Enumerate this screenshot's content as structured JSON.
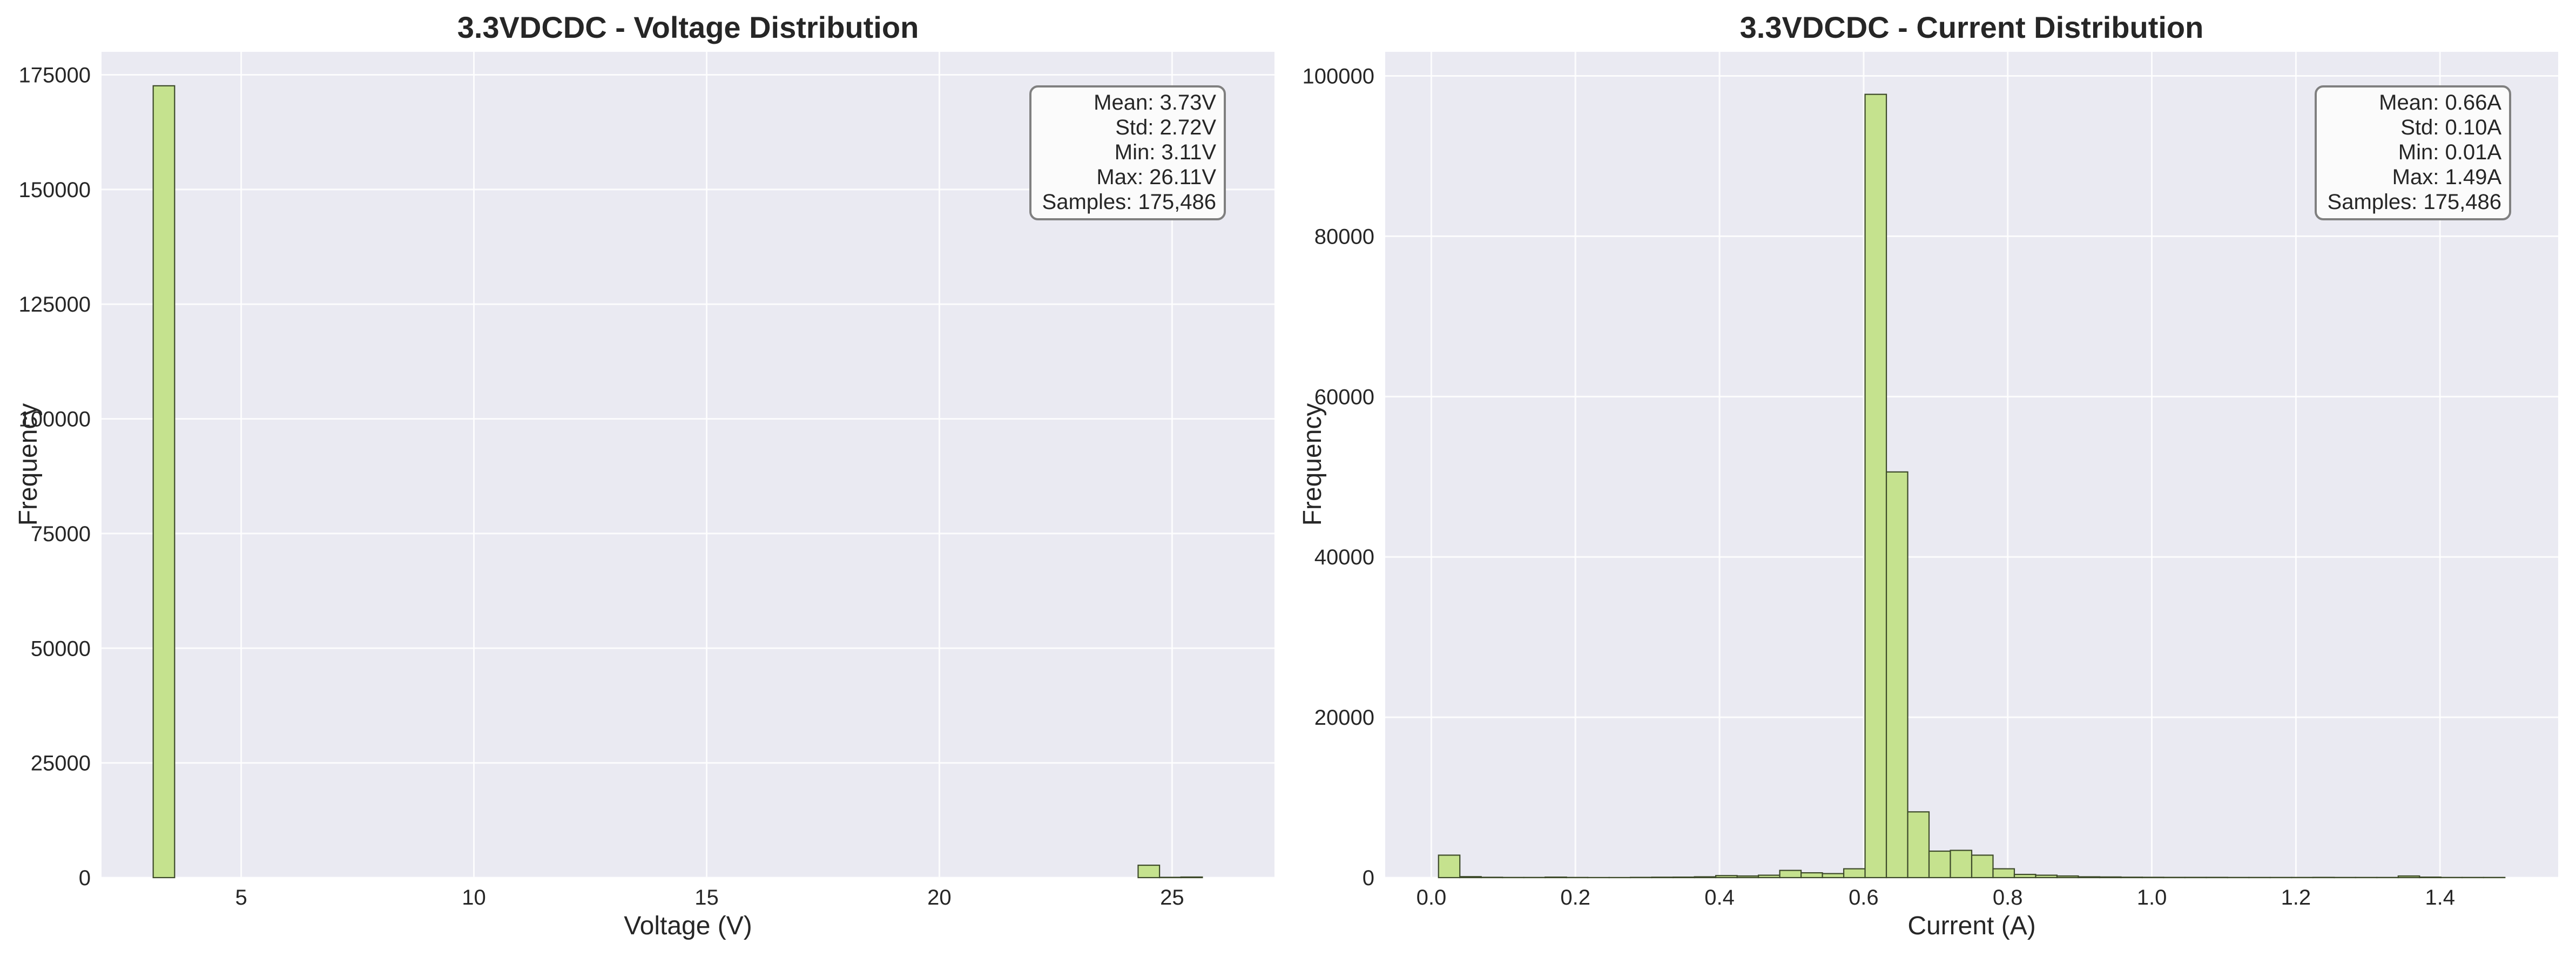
{
  "chart_data": [
    {
      "type": "bar",
      "title": "3.3VDCDC - Voltage Distribution",
      "xlabel": "Voltage (V)",
      "ylabel": "Frequency",
      "xlim": [
        2.0,
        27.2
      ],
      "ylim": [
        0,
        180000
      ],
      "xticks": [
        5,
        10,
        15,
        20,
        25
      ],
      "yticks": [
        0,
        25000,
        50000,
        75000,
        100000,
        125000,
        150000,
        175000
      ],
      "grid": true,
      "colors": {
        "bar": "#c5e28e",
        "edge": "#3d4a2a",
        "plot_bg": "#eaeaf2"
      },
      "bins": [
        {
          "x0": 3.11,
          "x1": 3.57,
          "count": 172600
        },
        {
          "x0": 24.27,
          "x1": 24.73,
          "count": 2700
        },
        {
          "x0": 24.73,
          "x1": 25.19,
          "count": 60
        },
        {
          "x0": 25.19,
          "x1": 25.65,
          "count": 126
        }
      ],
      "stats": [
        "Mean: 3.73V",
        "Std: 2.72V",
        "Min: 3.11V",
        "Max: 26.11V",
        "Samples: 175,486"
      ]
    },
    {
      "type": "bar",
      "title": "3.3VDCDC - Current Distribution",
      "xlabel": "Current (A)",
      "ylabel": "Frequency",
      "xlim": [
        -0.064,
        1.564
      ],
      "ylim": [
        0,
        103000
      ],
      "xticks": [
        0.0,
        0.2,
        0.4,
        0.6,
        0.8,
        1.0,
        1.2,
        1.4
      ],
      "yticks": [
        0,
        20000,
        40000,
        60000,
        80000,
        100000
      ],
      "grid": true,
      "colors": {
        "bar": "#c5e28e",
        "edge": "#3d4a2a",
        "plot_bg": "#eaeaf2"
      },
      "bin_start": 0.01,
      "bin_width": 0.0296,
      "counts": [
        2800,
        120,
        40,
        20,
        20,
        60,
        20,
        10,
        10,
        30,
        50,
        60,
        100,
        250,
        200,
        300,
        900,
        600,
        500,
        1100,
        97700,
        50600,
        8200,
        3300,
        3400,
        2800,
        1100,
        400,
        300,
        200,
        100,
        80,
        50,
        40,
        30,
        30,
        30,
        20,
        20,
        20,
        20,
        30,
        20,
        20,
        20,
        200,
        60,
        20,
        20,
        20
      ],
      "stats": [
        "Mean: 0.66A",
        "Std: 0.10A",
        "Min: 0.01A",
        "Max: 1.49A",
        "Samples: 175,486"
      ]
    }
  ]
}
